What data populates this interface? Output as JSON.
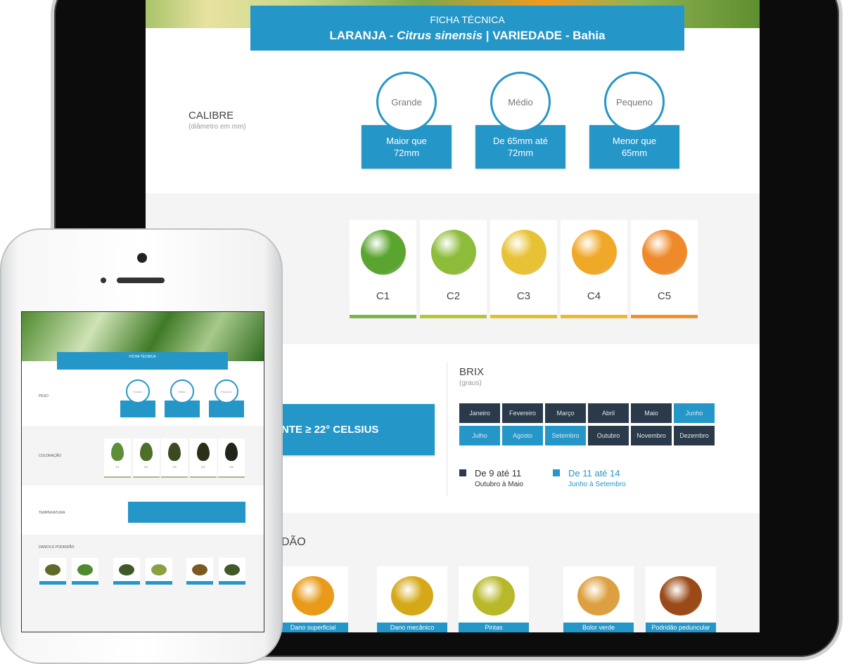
{
  "tablet": {
    "banner": {
      "title": "FICHA TÉCNICA",
      "subtitle_prefix": "LARANJA - ",
      "subtitle_species": "Citrus sinensis",
      "subtitle_suffix": " | VARIEDADE - Bahia"
    },
    "calibre": {
      "label": "CALIBRE",
      "sublabel": "(diâmetro em mm)",
      "sizes": [
        {
          "name": "Grande",
          "value": "Maior que 72mm"
        },
        {
          "name": "Médio",
          "value": "De 65mm até 72mm"
        },
        {
          "name": "Pequeno",
          "value": "Menor que 65mm"
        }
      ]
    },
    "coloracao": {
      "items": [
        {
          "code": "C1",
          "fruit": "#5aa530",
          "bar": "#7ab648"
        },
        {
          "code": "C2",
          "fruit": "#8dbb3a",
          "bar": "#b5c43a"
        },
        {
          "code": "C3",
          "fruit": "#e8c235",
          "bar": "#e0c030"
        },
        {
          "code": "C4",
          "fruit": "#f0a828",
          "bar": "#f0b830"
        },
        {
          "code": "C5",
          "fruit": "#ee8a2a",
          "bar": "#f0902e"
        }
      ]
    },
    "temperatura": {
      "value": "NTE ≥ 22° CELSIUS"
    },
    "brix": {
      "label": "BRIX",
      "sublabel": "(graus)",
      "months": [
        {
          "name": "Janeiro",
          "range": "low"
        },
        {
          "name": "Fevereiro",
          "range": "low"
        },
        {
          "name": "Março",
          "range": "low"
        },
        {
          "name": "Abril",
          "range": "low"
        },
        {
          "name": "Maio",
          "range": "low"
        },
        {
          "name": "Junho",
          "range": "high"
        },
        {
          "name": "Julho",
          "range": "high"
        },
        {
          "name": "Agosto",
          "range": "high"
        },
        {
          "name": "Setembro",
          "range": "high"
        },
        {
          "name": "Outubro",
          "range": "low"
        },
        {
          "name": "Novembro",
          "range": "low"
        },
        {
          "name": "Dezembro",
          "range": "low"
        }
      ],
      "legend": [
        {
          "value": "De 9 até 11",
          "period": "Outubro à Maio",
          "color": "#2b3a4a"
        },
        {
          "value": "De 11 até 14",
          "period": "Junho à Setembro",
          "color": "#2596c8"
        }
      ]
    },
    "danos": {
      "heading": "DÃO",
      "items": [
        {
          "label": "Dano superficial",
          "fruit": "#e89a18"
        },
        {
          "label": "Dano mecânico",
          "fruit": "#d6a818"
        },
        {
          "label": "Pintas",
          "fruit": "#b8b828"
        },
        {
          "label": "Bolor verde",
          "fruit": "#dda040"
        },
        {
          "label": "Podridão peduncular",
          "fruit": "#9a4a18"
        }
      ]
    }
  },
  "phone": {
    "banner": {
      "title": "FICHA TÉCNICA"
    },
    "sections": {
      "peso": "PESO",
      "coloracao": "COLORAÇÃO",
      "temperatura": "TEMPERATURA",
      "danos": "DANOS E PODRIDÃO"
    },
    "sizes": [
      "Grande",
      "Médio",
      "Pequeno"
    ],
    "codes": [
      "C1",
      "C2",
      "C3",
      "C4",
      "C5"
    ]
  },
  "colors": {
    "accent": "#2596c8",
    "dark": "#2b3a4a"
  }
}
